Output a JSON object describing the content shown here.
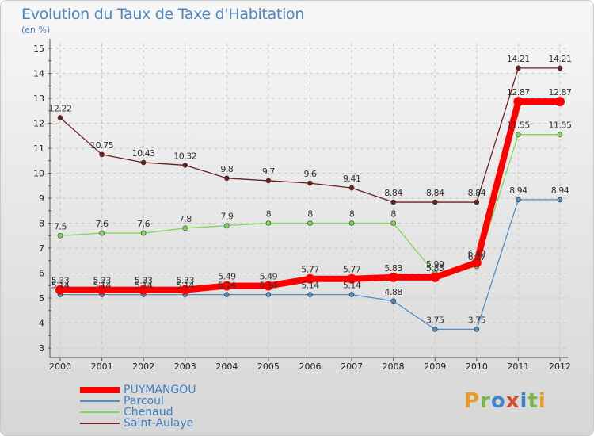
{
  "title": "Evolution du Taux de Taxe d'Habitation",
  "subtitle": "(en %)",
  "logo_text": "Proxiti",
  "chart_data": {
    "type": "line",
    "x": [
      "2000",
      "2001",
      "2002",
      "2003",
      "2004",
      "2005",
      "2006",
      "2007",
      "2008",
      "2009",
      "2010",
      "2011",
      "2012"
    ],
    "ylim": [
      3,
      15
    ],
    "yticks": [
      3,
      4,
      5,
      6,
      7,
      8,
      9,
      10,
      11,
      12,
      13,
      14,
      15
    ],
    "grid": true,
    "legend_position": "bottom-left",
    "series": [
      {
        "name": "Saint-Aulaye",
        "color": "#6b1f1f",
        "values": [
          12.22,
          10.75,
          10.43,
          10.32,
          9.8,
          9.7,
          9.6,
          9.41,
          8.84,
          8.84,
          8.84,
          14.21,
          14.21
        ],
        "labels": [
          "12.22",
          "10.75",
          "10.43",
          "10.32",
          "9.8",
          "9.7",
          "9.6",
          "9.41",
          "8.84",
          "8.84",
          "8.84",
          "14.21",
          "14.21"
        ]
      },
      {
        "name": "Chenaud",
        "color": "#7ed957",
        "values": [
          7.5,
          7.6,
          7.6,
          7.8,
          7.9,
          8,
          8,
          8,
          8,
          5.99,
          6.27,
          11.55,
          11.55
        ],
        "labels": [
          "7.5",
          "7.6",
          "7.6",
          "7.8",
          "7.9",
          "8",
          "8",
          "8",
          "8",
          "5.99",
          "6.27",
          "11.55",
          "11.55"
        ]
      },
      {
        "name": "Parcoul",
        "color": "#4d8fc9",
        "values": [
          5.14,
          5.14,
          5.14,
          5.14,
          5.14,
          5.14,
          5.14,
          5.14,
          4.88,
          3.75,
          3.75,
          8.94,
          8.94
        ],
        "labels": [
          "5.14",
          "5.14",
          "5.14",
          "5.14",
          "5.14",
          "5.14",
          "5.14",
          "5.14",
          "4.88",
          "3.75",
          "3.75",
          "8.94",
          "8.94"
        ]
      },
      {
        "name": "PUYMANGOU",
        "color": "#ff0000",
        "values": [
          5.33,
          5.33,
          5.33,
          5.33,
          5.49,
          5.49,
          5.77,
          5.77,
          5.83,
          5.83,
          6.42,
          12.87,
          12.87
        ],
        "labels": [
          "5.33",
          "5.33",
          "5.33",
          "5.33",
          "5.49",
          "5.49",
          "5.77",
          "5.77",
          "5.83",
          "5.83",
          "6.42",
          "12.87",
          "12.87"
        ]
      }
    ],
    "legend": [
      "PUYMANGOU",
      "Parcoul",
      "Chenaud",
      "Saint-Aulaye"
    ]
  }
}
